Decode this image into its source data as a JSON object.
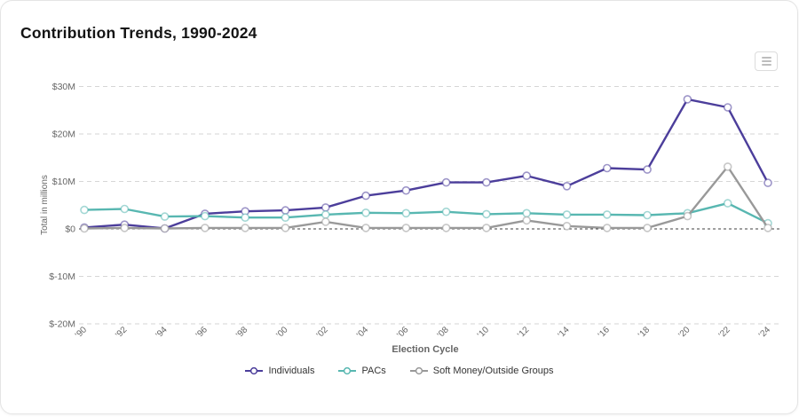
{
  "chart_data": {
    "type": "line",
    "title": "Contribution Trends, 1990-2024",
    "xlabel": "Election Cycle",
    "ylabel": "Total in millions",
    "unit": "USD millions",
    "legend_position": "bottom",
    "grid": {
      "line_color": "#d6d6d6",
      "zero_line_color": "#3f3f3f",
      "dashed": true
    },
    "ylim": [
      -22,
      33
    ],
    "y_ticks": [
      {
        "label": "$30M",
        "value": 30
      },
      {
        "label": "$20M",
        "value": 20
      },
      {
        "label": "$10M",
        "value": 10
      },
      {
        "label": "$0",
        "value": 0
      },
      {
        "label": "$-10M",
        "value": -10
      },
      {
        "label": "$-20M",
        "value": -20
      }
    ],
    "x_categories": [
      "’90",
      "’92",
      "’94",
      "’96",
      "’98",
      "’00",
      "’02",
      "’04",
      "’06",
      "’08",
      "’10",
      "’12",
      "’14",
      "’16",
      "’18",
      "’20",
      "’22",
      "’24"
    ],
    "series": [
      {
        "name": "Individuals",
        "color": "#4c3e9b",
        "values": [
          0.3,
          0.9,
          0.1,
          3.2,
          3.7,
          3.9,
          4.5,
          7.0,
          8.1,
          9.8,
          9.8,
          11.2,
          9.0,
          12.8,
          12.5,
          27.3,
          25.6,
          9.7
        ]
      },
      {
        "name": "PACs",
        "color": "#58b7b1",
        "values": [
          4.0,
          4.2,
          2.6,
          2.7,
          2.4,
          2.4,
          3.0,
          3.4,
          3.3,
          3.6,
          3.1,
          3.3,
          3.0,
          3.0,
          2.9,
          3.3,
          5.4,
          1.2
        ]
      },
      {
        "name": "Soft Money/Outside Groups",
        "color": "#999999",
        "values": [
          0.1,
          0.2,
          0.1,
          0.2,
          0.2,
          0.2,
          1.5,
          0.2,
          0.2,
          0.2,
          0.2,
          1.8,
          0.6,
          0.2,
          0.2,
          2.7,
          13.1,
          0.2
        ]
      }
    ]
  },
  "menu_button": {
    "icon": "hamburger-menu-icon"
  },
  "marker": {
    "shape": "circle",
    "fill": "#ffffff"
  }
}
